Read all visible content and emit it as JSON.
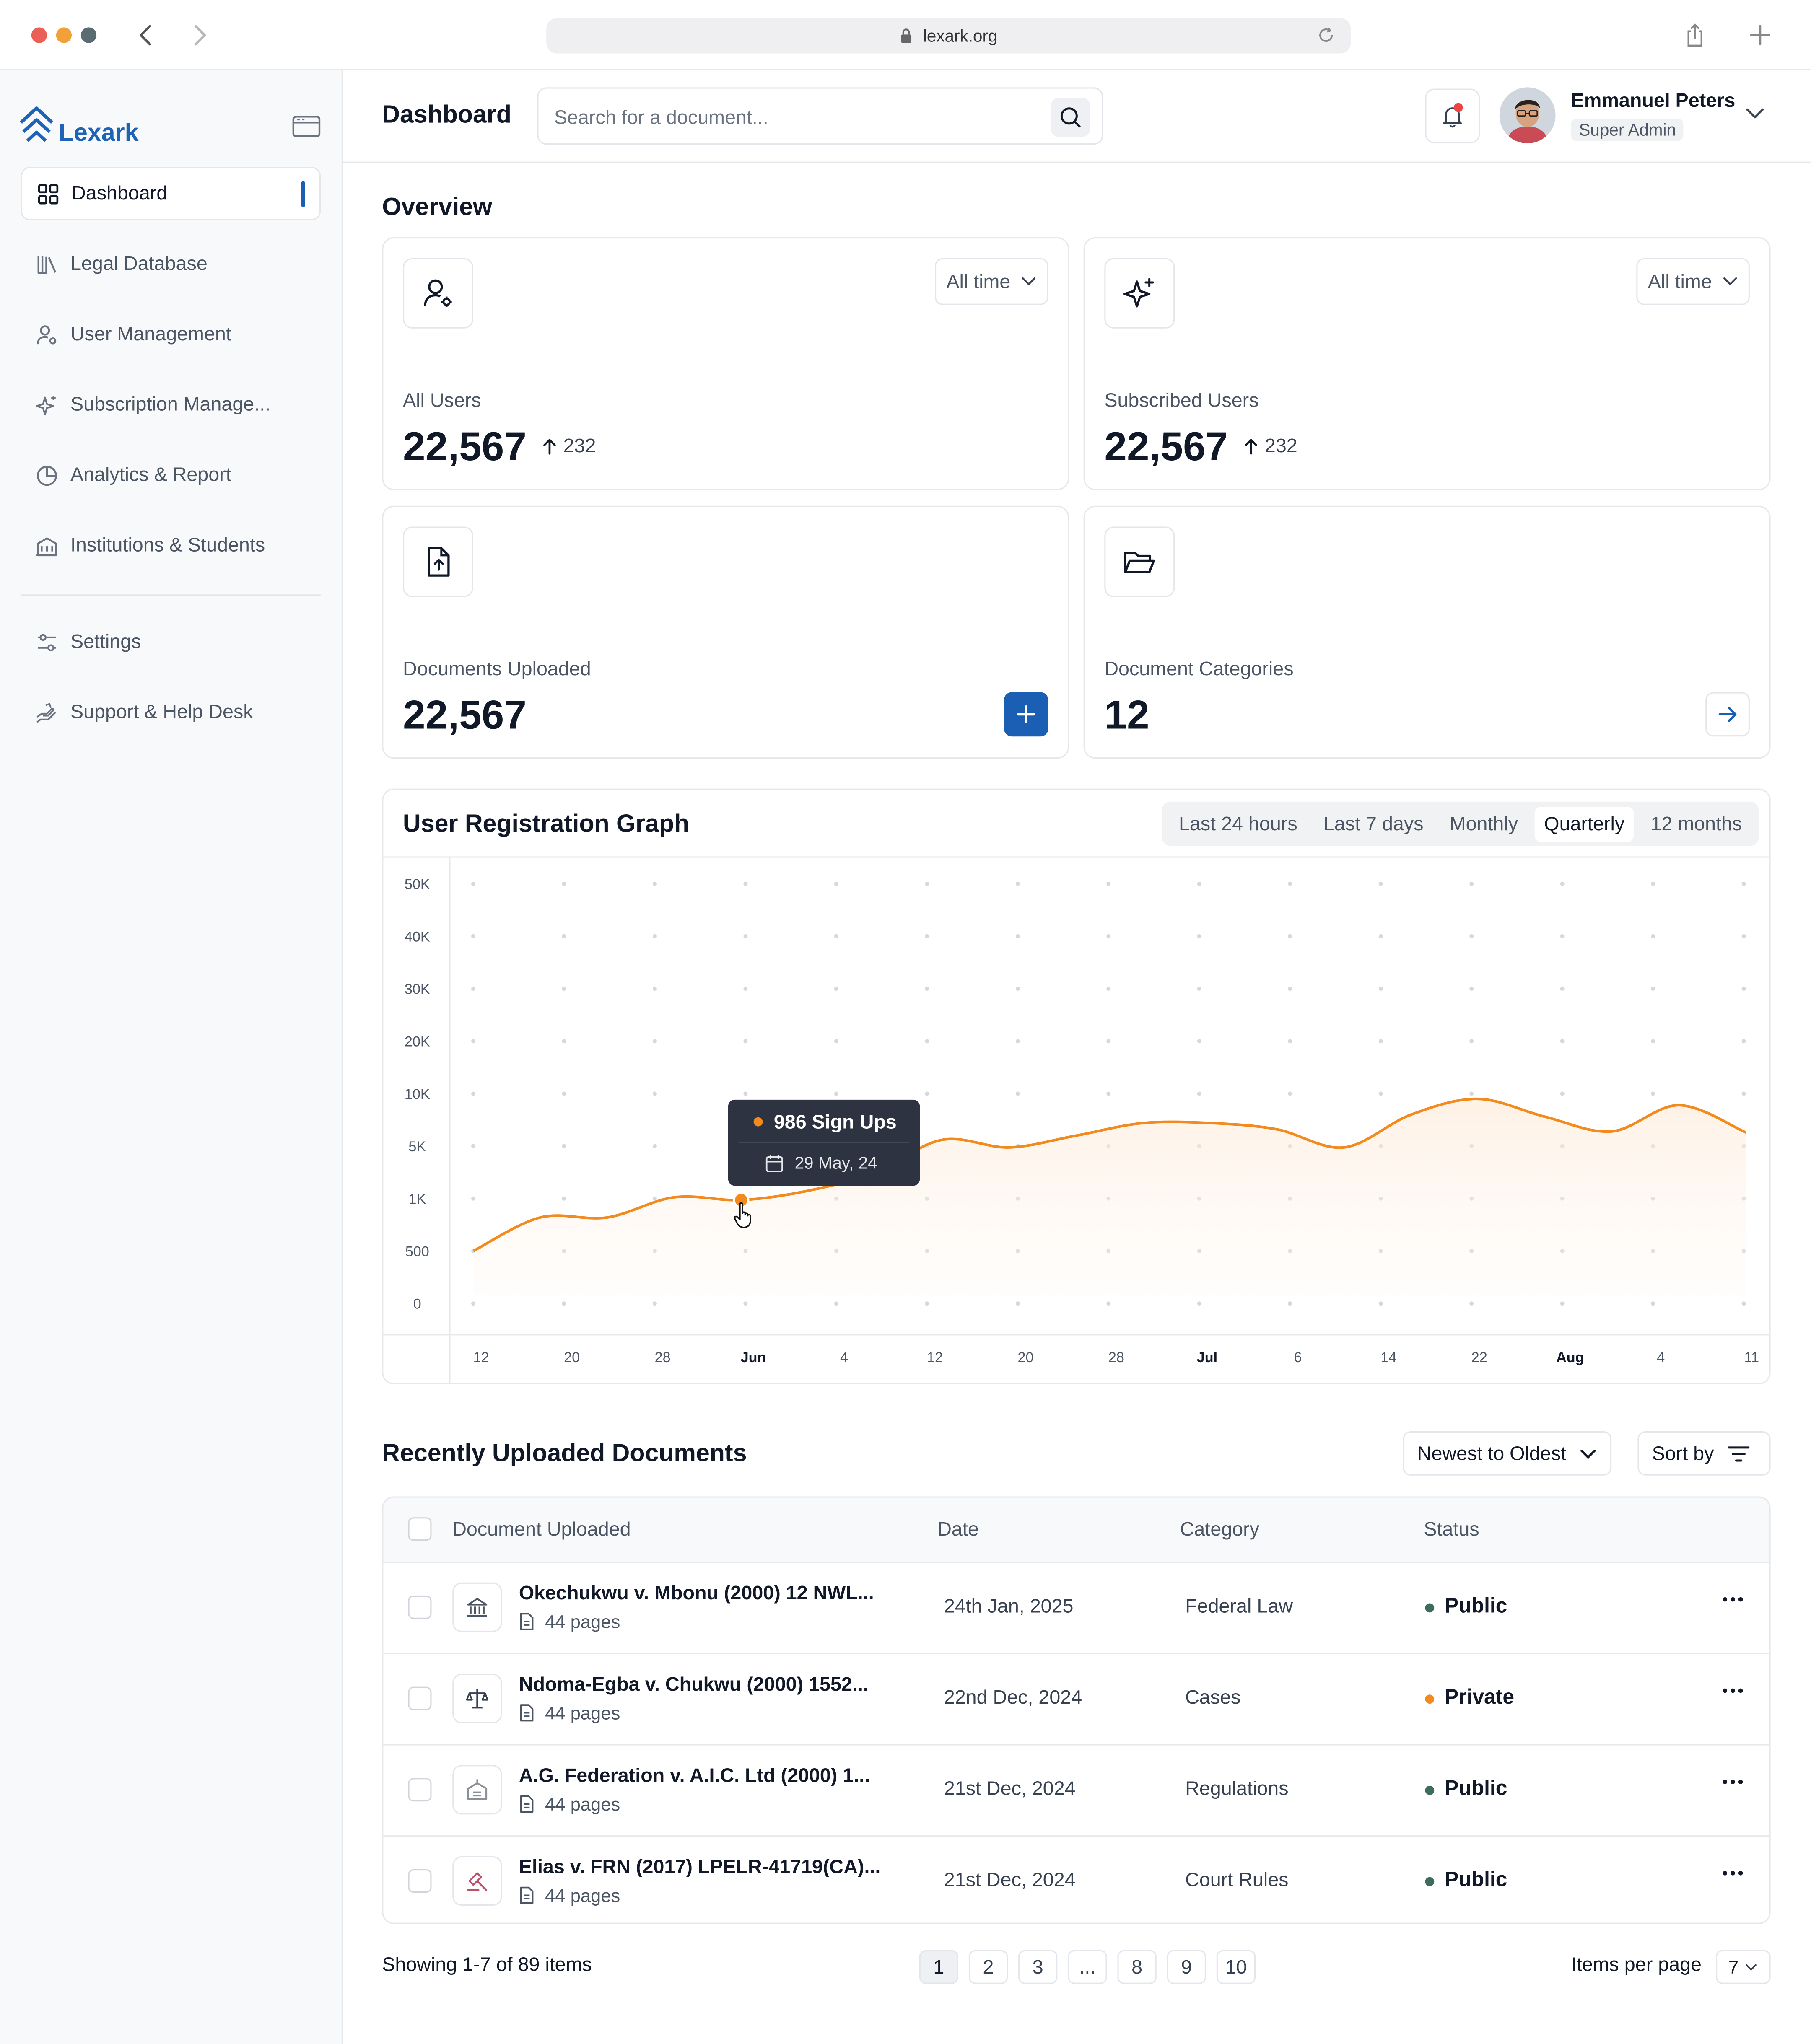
{
  "browser": {
    "url": "lexark.org",
    "traffic_lights": [
      "#ec5f57",
      "#f2a03a",
      "#5b6b72"
    ]
  },
  "brand": {
    "name": "Lexark",
    "color": "#1f63b6"
  },
  "sidebar": {
    "items": [
      {
        "label": "Dashboard",
        "icon": "grid-icon",
        "active": true
      },
      {
        "label": "Legal Database",
        "icon": "books-icon"
      },
      {
        "label": "User Management",
        "icon": "user-gear-icon"
      },
      {
        "label": "Subscription Manage...",
        "icon": "sparkle-icon"
      },
      {
        "label": "Analytics & Report",
        "icon": "pie-chart-icon"
      },
      {
        "label": "Institutions & Students",
        "icon": "building-icon"
      }
    ],
    "secondary_items": [
      {
        "label": "Settings",
        "icon": "sliders-icon"
      },
      {
        "label": "Support & Help Desk",
        "icon": "help-hand-icon"
      }
    ]
  },
  "header": {
    "title": "Dashboard",
    "search_placeholder": "Search for a document...",
    "user": {
      "name": "Emmanuel Peters",
      "role": "Super Admin"
    }
  },
  "overview": {
    "title": "Overview",
    "cards": [
      {
        "label": "All Users",
        "value": "22,567",
        "delta": "232",
        "filter": "All time",
        "icon": "user-gear-icon"
      },
      {
        "label": "Subscribed Users",
        "value": "22,567",
        "delta": "232",
        "filter": "All time",
        "icon": "sparkle-icon"
      },
      {
        "label": "Documents Uploaded",
        "value": "22,567",
        "icon": "file-upload-icon",
        "action": "plus-icon"
      },
      {
        "label": "Document Categories",
        "value": "12",
        "icon": "folder-open-icon",
        "action": "arrow-right-icon"
      }
    ]
  },
  "graph": {
    "title": "User Registration Graph",
    "ranges": [
      "Last 24 hours",
      "Last 7 days",
      "Monthly",
      "Quarterly",
      "12 months"
    ],
    "active_range": "Quarterly",
    "tooltip": {
      "value": "986 Sign Ups",
      "date": "29 May, 24"
    }
  },
  "chart_data": {
    "type": "area",
    "y_ticks": [
      "50K",
      "40K",
      "30K",
      "20K",
      "10K",
      "5K",
      "1K",
      "500",
      "0"
    ],
    "y_tick_values": [
      50000,
      40000,
      30000,
      20000,
      10000,
      5000,
      1000,
      500,
      0
    ],
    "x_ticks": [
      "12",
      "20",
      "28",
      "Jun",
      "4",
      "12",
      "20",
      "28",
      "Jul",
      "6",
      "14",
      "22",
      "Aug",
      "4",
      "11"
    ],
    "x_ticks_bold": [
      "Jun",
      "Jul",
      "Aug"
    ],
    "x": [
      "May 10",
      "May 15",
      "May 20",
      "May 25",
      "May 29",
      "Jun 3",
      "Jun 8",
      "Jun 13",
      "Jun 18",
      "Jun 23",
      "Jun 28",
      "Jul 3",
      "Jul 8",
      "Jul 13",
      "Jul 18",
      "Jul 23",
      "Jul 28",
      "Aug 2",
      "Aug 7",
      "Aug 12"
    ],
    "values": [
      500,
      820,
      820,
      1100,
      986,
      1600,
      3000,
      5600,
      4900,
      6000,
      7200,
      7200,
      6600,
      4900,
      8000,
      9500,
      7800,
      6400,
      8900,
      6300
    ],
    "line_color": "#f28a1e",
    "ylim": [
      0,
      50000
    ],
    "grid": "dotted",
    "highlight": {
      "index": 4,
      "label": "986 Sign Ups",
      "date": "29 May, 24"
    }
  },
  "documents": {
    "title": "Recently Uploaded Documents",
    "order": "Newest to Oldest",
    "sort_label": "Sort by",
    "columns": [
      "Document Uploaded",
      "Date",
      "Category",
      "Status"
    ],
    "rows": [
      {
        "title": "Okechukwu v. Mbonu (2000) 12 NWL...",
        "pages": "44 pages",
        "date": "24th Jan, 2025",
        "category": "Federal Law",
        "status": "Public",
        "status_color": "#3f6b5a",
        "icon": "courthouse-icon"
      },
      {
        "title": "Ndoma-Egba v. Chukwu (2000) 1552...",
        "pages": "44 pages",
        "date": "22nd Dec, 2024",
        "category": "Cases",
        "status": "Private",
        "status_color": "#f28a1e",
        "icon": "scales-icon"
      },
      {
        "title": "A.G. Federation v. A.I.C. Ltd (2000) 1...",
        "pages": "44 pages",
        "date": "21st Dec, 2024",
        "category": "Regulations",
        "status": "Public",
        "status_color": "#3f6b5a",
        "icon": "institution-icon"
      },
      {
        "title": "Elias v. FRN (2017) LPELR-41719(CA)...",
        "pages": "44 pages",
        "date": "21st Dec, 2024",
        "category": "Court Rules",
        "status": "Public",
        "status_color": "#3f6b5a",
        "icon": "gavel-icon"
      }
    ]
  },
  "pagination": {
    "summary": "Showing 1-7 of 89 items",
    "pages": [
      "1",
      "2",
      "3",
      "...",
      "8",
      "9",
      "10"
    ],
    "current": "1",
    "items_per_page_label": "Items per page",
    "items_per_page": "7"
  }
}
